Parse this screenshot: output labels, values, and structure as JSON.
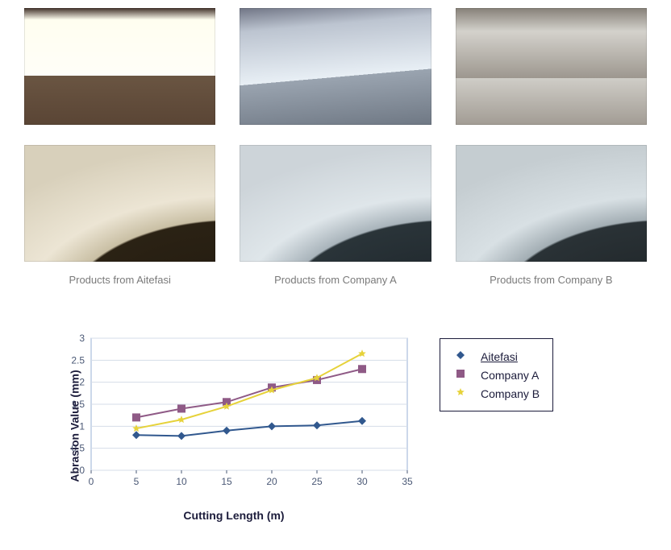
{
  "photos": {
    "captions": [
      "Products from Aitefasi",
      "Products from Company A",
      "Products from Company B"
    ],
    "caption_fontsize": 13,
    "caption_color": "#7a7a7a"
  },
  "chart": {
    "type": "line",
    "background_color": "#ffffff",
    "plot_border": "#9ab0d4",
    "grid_color": "#d5dde8",
    "xlabel": "Cutting Length (m)",
    "ylabel": "Abrasion Value (mm)",
    "label_fontsize": 14,
    "label_color": "#1c1c3b",
    "tick_fontsize": 12,
    "tick_color": "#4a5875",
    "xlim": [
      0,
      35
    ],
    "xtick_step": 5,
    "ylim": [
      0,
      3
    ],
    "ytick_step": 0.5,
    "line_width": 2,
    "marker_size": 5,
    "series": [
      {
        "name": "Aitefasi",
        "color": "#31588e",
        "marker": "diamond",
        "x": [
          5,
          10,
          15,
          20,
          25,
          30
        ],
        "y": [
          0.8,
          0.78,
          0.9,
          1.0,
          1.02,
          1.12
        ]
      },
      {
        "name": "Company A",
        "color": "#8f5a86",
        "marker": "square",
        "x": [
          5,
          10,
          15,
          20,
          25,
          30
        ],
        "y": [
          1.2,
          1.4,
          1.55,
          1.88,
          2.05,
          2.3
        ]
      },
      {
        "name": "Company B",
        "color": "#e6d23a",
        "marker": "star",
        "x": [
          5,
          10,
          15,
          20,
          25,
          30
        ],
        "y": [
          0.95,
          1.15,
          1.45,
          1.82,
          2.1,
          2.65
        ]
      }
    ]
  },
  "legend": {
    "border": "#1c1c3b",
    "items": [
      "Aitefasi",
      "Company A",
      "Company B"
    ]
  }
}
